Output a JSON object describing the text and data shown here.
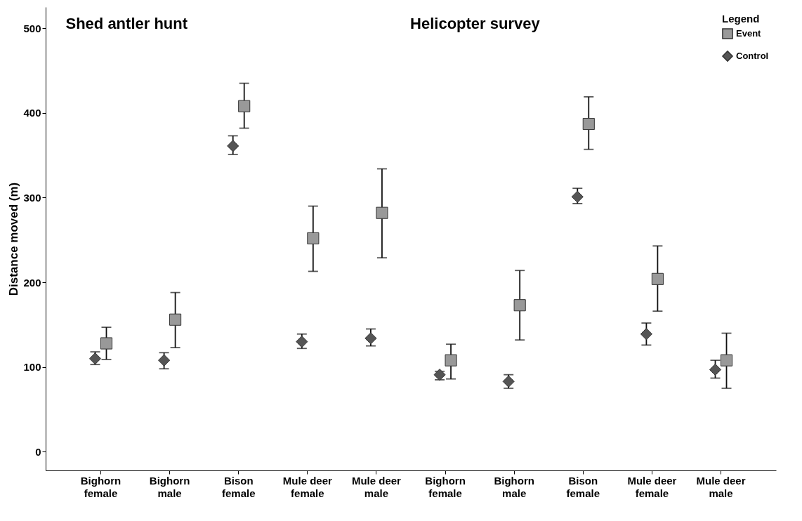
{
  "chart_data": {
    "type": "scatter",
    "ylabel": "Distance moved (m)",
    "annotations": [
      "Shed antler hunt",
      "Helicopter survey"
    ],
    "categories": [
      "Bighorn female",
      "Bighorn male",
      "Bison female",
      "Mule deer female",
      "Mule deer male",
      "Bighorn female",
      "Bighorn male",
      "Bison female",
      "Mule deer female",
      "Mule deer male"
    ],
    "ylim": [
      -22,
      525
    ],
    "yticks": [
      0,
      100,
      200,
      300,
      400,
      500
    ],
    "legend": "top right",
    "legend_title": "Legend",
    "series": [
      {
        "name": "Event",
        "color": "#999999",
        "marker": "square",
        "values": [
          128,
          156,
          408,
          252,
          282,
          108,
          173,
          387,
          204,
          108
        ],
        "errors": [
          [
            109,
            147
          ],
          [
            123,
            188
          ],
          [
            382,
            435
          ],
          [
            213,
            290
          ],
          [
            229,
            334
          ],
          [
            86,
            127
          ],
          [
            132,
            214
          ],
          [
            357,
            419
          ],
          [
            166,
            243
          ],
          [
            75,
            140
          ]
        ]
      },
      {
        "name": "Control",
        "color": "#555555",
        "marker": "diamond",
        "values": [
          110,
          108,
          361,
          130,
          134,
          91,
          83,
          301,
          139,
          97
        ],
        "errors": [
          [
            103,
            118
          ],
          [
            98,
            117
          ],
          [
            351,
            373
          ],
          [
            122,
            139
          ],
          [
            125,
            145
          ],
          [
            85,
            95
          ],
          [
            75,
            91
          ],
          [
            293,
            311
          ],
          [
            126,
            152
          ],
          [
            87,
            108
          ]
        ]
      }
    ]
  }
}
